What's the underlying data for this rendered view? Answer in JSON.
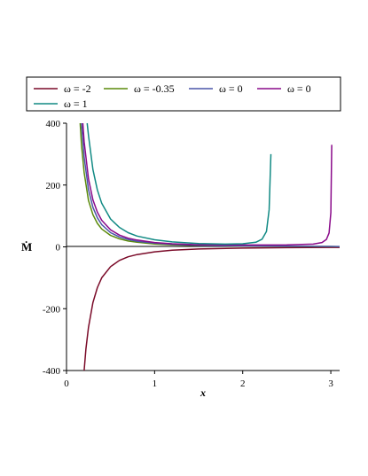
{
  "chart_data": {
    "type": "line",
    "title": "",
    "xlabel": "x",
    "ylabel": "Ṁ",
    "xlim": [
      0,
      3.1
    ],
    "ylim": [
      -400,
      400
    ],
    "x_ticks": [
      0,
      1,
      2,
      3
    ],
    "y_ticks": [
      -400,
      -200,
      0,
      200,
      400
    ],
    "grid": false,
    "legend_position": "top",
    "series": [
      {
        "name": "ω = -2",
        "color": "#7a0a28",
        "x": [
          0.2,
          0.22,
          0.25,
          0.3,
          0.35,
          0.4,
          0.5,
          0.6,
          0.7,
          0.8,
          1.0,
          1.2,
          1.5,
          2.0,
          2.5,
          3.0,
          3.1
        ],
        "y": [
          -400,
          -330,
          -260,
          -180,
          -132,
          -100,
          -64,
          -44,
          -32,
          -25,
          -16,
          -11,
          -7,
          -4,
          -2.5,
          -1.8,
          -1.7
        ]
      },
      {
        "name": "ω = -0.35",
        "color": "#5a8a0a",
        "x": [
          0.155,
          0.17,
          0.2,
          0.25,
          0.3,
          0.35,
          0.4,
          0.5,
          0.6,
          0.7,
          0.8,
          1.0,
          1.2,
          1.5,
          2.0,
          2.5,
          3.0,
          3.1
        ],
        "y": [
          400,
          330,
          240,
          150,
          104,
          76,
          58,
          37,
          26,
          19,
          15,
          9.6,
          6.7,
          4.3,
          2.4,
          1.5,
          1.1,
          1.0
        ]
      },
      {
        "name": "ω = 0",
        "color": "#4a55a8",
        "x": [
          0.17,
          0.2,
          0.25,
          0.3,
          0.35,
          0.4,
          0.5,
          0.6,
          0.7,
          0.8,
          1.0,
          1.2,
          1.5,
          2.0,
          2.5,
          3.0,
          3.1
        ],
        "y": [
          400,
          290,
          185,
          128,
          94,
          72,
          46,
          32,
          24,
          18,
          12,
          8.3,
          5.3,
          3.0,
          1.9,
          1.3,
          1.2
        ]
      },
      {
        "name": "ω = 0",
        "color": "#8a0a8a",
        "x": [
          0.185,
          0.2,
          0.25,
          0.3,
          0.35,
          0.4,
          0.5,
          0.6,
          0.7,
          0.8,
          1.0,
          1.2,
          1.5,
          2.0,
          2.5,
          2.8,
          2.9,
          2.95,
          2.98,
          3.0,
          3.01
        ],
        "y": [
          400,
          340,
          220,
          152,
          112,
          86,
          55,
          38,
          28,
          22,
          14,
          10,
          7,
          6,
          6.5,
          9,
          14,
          24,
          45,
          110,
          330
        ]
      },
      {
        "name": "ω = 1",
        "color": "#118a84",
        "x": [
          0.235,
          0.25,
          0.3,
          0.35,
          0.4,
          0.5,
          0.6,
          0.7,
          0.8,
          1.0,
          1.2,
          1.5,
          1.8,
          2.0,
          2.15,
          2.22,
          2.27,
          2.3,
          2.32
        ],
        "y": [
          400,
          360,
          250,
          184,
          141,
          90,
          63,
          46,
          35,
          23,
          16,
          11,
          9,
          10,
          15,
          25,
          50,
          120,
          300
        ]
      }
    ]
  }
}
